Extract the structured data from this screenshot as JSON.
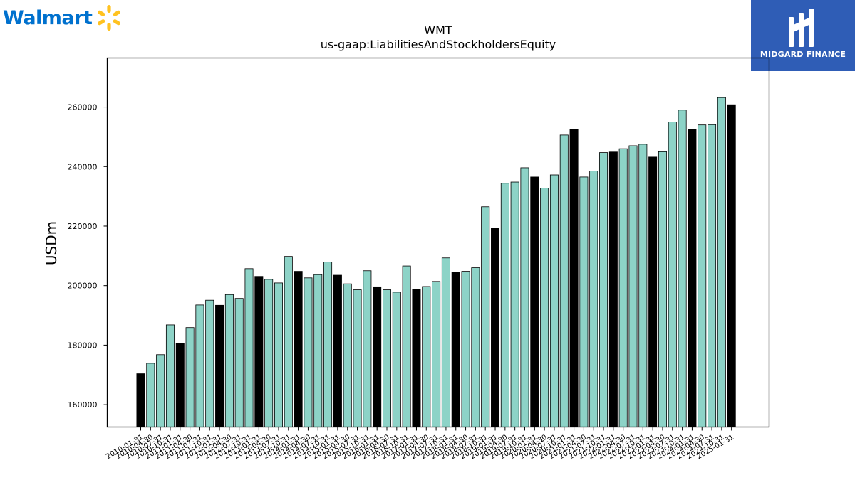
{
  "branding": {
    "left_logo_text": "Walmart",
    "right_logo_text": "MIDGARD FINANCE",
    "walmart_blue": "#0071ce",
    "walmart_spark": "#ffc220",
    "midgard_bg": "#2f5db6"
  },
  "chart_data": {
    "type": "bar",
    "title": "WMT",
    "subtitle": "us-gaap:LiabilitiesAndStockholdersEquity",
    "xlabel": "",
    "ylabel": "USDm",
    "ylim": [
      152500,
      276500
    ],
    "yticks": [
      160000,
      180000,
      200000,
      220000,
      240000,
      260000
    ],
    "grid": false,
    "colors": {
      "quarterly": "#8dd3c7",
      "annual": "#000000",
      "edge": "#000000"
    },
    "categories": [
      "2010-01-31",
      "2010-04-30",
      "2010-07-31",
      "2010-10-31",
      "2011-01-31",
      "2011-04-30",
      "2011-07-31",
      "2011-10-31",
      "2012-01-31",
      "2012-04-30",
      "2012-07-31",
      "2012-10-31",
      "2013-01-31",
      "2013-04-30",
      "2013-07-31",
      "2013-10-31",
      "2014-01-31",
      "2014-04-30",
      "2014-07-31",
      "2014-10-31",
      "2015-01-31",
      "2015-04-30",
      "2015-07-31",
      "2015-10-31",
      "2016-01-31",
      "2016-04-30",
      "2016-07-31",
      "2016-10-31",
      "2017-01-31",
      "2017-04-30",
      "2017-07-31",
      "2017-10-31",
      "2018-01-31",
      "2018-04-30",
      "2018-07-31",
      "2018-10-31",
      "2019-01-31",
      "2019-04-30",
      "2019-07-31",
      "2019-10-31",
      "2020-01-31",
      "2020-04-30",
      "2020-07-31",
      "2020-10-31",
      "2021-01-31",
      "2021-04-30",
      "2021-07-31",
      "2021-10-31",
      "2022-01-31",
      "2022-04-30",
      "2022-07-31",
      "2022-10-31",
      "2023-01-31",
      "2023-04-30",
      "2023-07-31",
      "2023-10-31",
      "2024-01-31",
      "2024-04-30",
      "2024-07-31",
      "2024-10-31",
      "2025-01-31"
    ],
    "values": [
      170400,
      173900,
      176800,
      186800,
      180700,
      185900,
      193500,
      195100,
      193400,
      197000,
      195700,
      205700,
      203100,
      202100,
      200900,
      209800,
      204800,
      202600,
      203700,
      207900,
      203500,
      200600,
      198600,
      205000,
      199600,
      198600,
      197800,
      206600,
      198800,
      199700,
      201400,
      209300,
      204500,
      204800,
      206000,
      226500,
      219300,
      234400,
      234800,
      239600,
      236500,
      232800,
      237200,
      250600,
      252500,
      236500,
      238500,
      244700,
      244900,
      246000,
      247000,
      247500,
      243200,
      245000,
      255000,
      259000,
      252400,
      254000,
      254100,
      263200,
      260800
    ],
    "annual_flags": [
      1,
      0,
      0,
      0,
      1,
      0,
      0,
      0,
      1,
      0,
      0,
      0,
      1,
      0,
      0,
      0,
      1,
      0,
      0,
      0,
      1,
      0,
      0,
      0,
      1,
      0,
      0,
      0,
      1,
      0,
      0,
      0,
      1,
      0,
      0,
      0,
      1,
      0,
      0,
      0,
      1,
      0,
      0,
      0,
      1,
      0,
      0,
      0,
      1,
      0,
      0,
      0,
      1,
      0,
      0,
      0,
      1,
      0,
      0,
      0,
      1
    ]
  }
}
